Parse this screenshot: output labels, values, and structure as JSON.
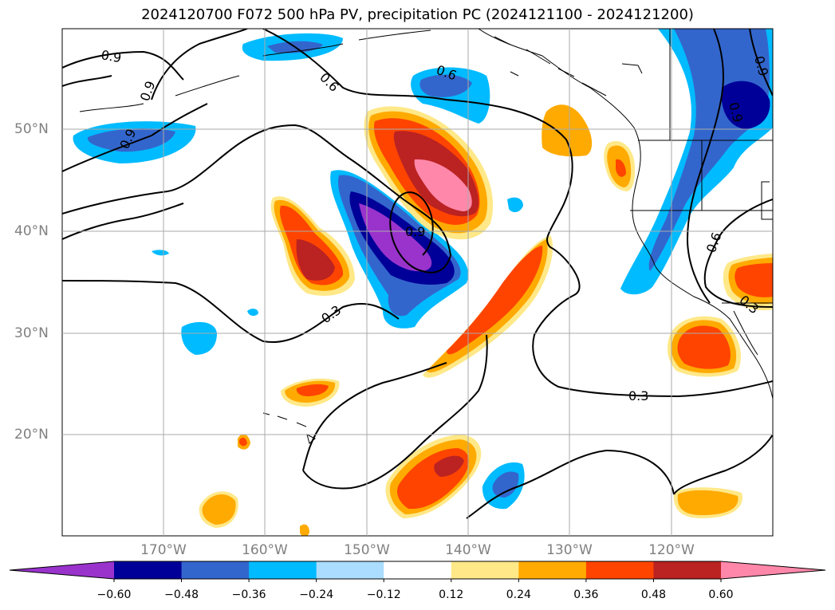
{
  "title": "2024120700 F072 500 hPa PV, precipitation PC (2024121100 - 2024121200)",
  "map": {
    "lat_labels": [
      "50°N",
      "40°N",
      "30°N",
      "20°N"
    ],
    "lon_labels": [
      "170°W",
      "160°W",
      "150°W",
      "140°W",
      "130°W",
      "120°W"
    ],
    "contour_labels": [
      "0.9",
      "0.9",
      "0.9",
      "0.6",
      "0.6",
      "0.9",
      "0.9",
      "0.9",
      "0.6",
      "0.3",
      "0.3",
      "0.3"
    ]
  },
  "colorbar": {
    "ticks": [
      "−0.60",
      "−0.48",
      "−0.36",
      "−0.24",
      "−0.12",
      "0.12",
      "0.24",
      "0.36",
      "0.48",
      "0.60"
    ],
    "colors": [
      "#9933cc",
      "#000099",
      "#3366cc",
      "#00bbff",
      "#aaddff",
      "#ffffff",
      "#ffe888",
      "#ffaa00",
      "#ff4400",
      "#bb2222",
      "#ff88aa"
    ]
  },
  "palette": {
    "purple": "#9933cc",
    "navy": "#000099",
    "blue": "#3366cc",
    "cyan": "#00bbff",
    "lightblue": "#aaddff",
    "lightyellow": "#ffe888",
    "orange": "#ffaa00",
    "redorange": "#ff4400",
    "darkred": "#bb2222",
    "pink": "#ff88aa"
  }
}
